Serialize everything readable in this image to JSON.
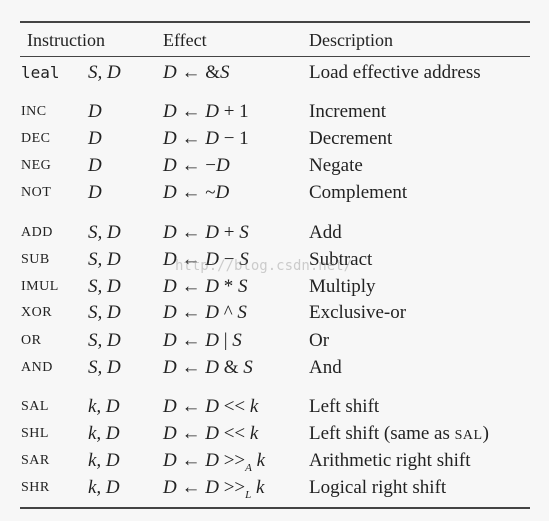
{
  "header": {
    "instruction": "Instruction",
    "effect": "Effect",
    "description": "Description"
  },
  "rows": [
    {
      "instr": "leal",
      "operands": "S, D",
      "effect": [
        "D",
        " ← ",
        "&",
        "S"
      ],
      "desc": "Load effective address"
    },
    {
      "instr": "INC",
      "operands": "D",
      "effect": [
        "D",
        " ← ",
        "D",
        " + 1"
      ],
      "desc": "Increment"
    },
    {
      "instr": "DEC",
      "operands": "D",
      "effect": [
        "D",
        " ← ",
        "D",
        " − 1"
      ],
      "desc": "Decrement"
    },
    {
      "instr": "NEG",
      "operands": "D",
      "effect": [
        "D",
        " ← ",
        "−",
        "D"
      ],
      "desc": "Negate"
    },
    {
      "instr": "NOT",
      "operands": "D",
      "effect": [
        "D",
        " ← ",
        "~",
        "D"
      ],
      "desc": "Complement"
    },
    {
      "instr": "ADD",
      "operands": "S, D",
      "effect": [
        "D",
        " ← ",
        "D",
        " + ",
        "S"
      ],
      "desc": "Add"
    },
    {
      "instr": "SUB",
      "operands": "S, D",
      "effect": [
        "D",
        " ← ",
        "D",
        " − ",
        "S"
      ],
      "desc": "Subtract"
    },
    {
      "instr": "IMUL",
      "operands": "S, D",
      "effect": [
        "D",
        " ← ",
        "D",
        " * ",
        "S"
      ],
      "desc": "Multiply"
    },
    {
      "instr": "XOR",
      "operands": "S, D",
      "effect": [
        "D",
        " ← ",
        "D",
        " ^ ",
        "S"
      ],
      "desc": "Exclusive-or"
    },
    {
      "instr": "OR",
      "operands": "S, D",
      "effect": [
        "D",
        " ← ",
        "D",
        " | ",
        "S"
      ],
      "desc": "Or"
    },
    {
      "instr": "AND",
      "operands": "S, D",
      "effect": [
        "D",
        " ← ",
        "D",
        " & ",
        "S"
      ],
      "desc": "And"
    },
    {
      "instr": "SAL",
      "operands": "k, D",
      "effect": [
        "D",
        " ← ",
        "D",
        " << ",
        "k"
      ],
      "desc": "Left shift"
    },
    {
      "instr": "SHL",
      "operands": "k, D",
      "effect": [
        "D",
        " ← ",
        "D",
        " << ",
        "k"
      ],
      "desc": "Left shift (same as SAL)"
    },
    {
      "instr": "SAR",
      "operands": "k, D",
      "effect": [
        "D",
        " ← ",
        "D",
        " >>",
        "A",
        " ",
        "k"
      ],
      "desc": "Arithmetic right shift"
    },
    {
      "instr": "SHR",
      "operands": "k, D",
      "effect": [
        "D",
        " ← ",
        "D",
        " >>",
        "L",
        " ",
        "k"
      ],
      "desc": "Logical right shift"
    }
  ],
  "watermark": "http://blog.csdn.net/"
}
